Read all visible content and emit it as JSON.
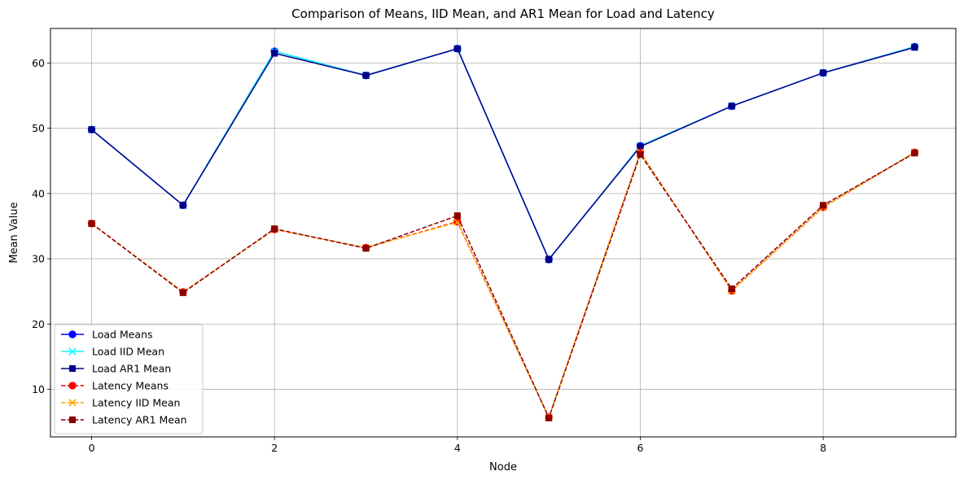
{
  "chart_data": {
    "type": "line",
    "title": "Comparison of Means, IID Mean, and AR1 Mean for Load and Latency",
    "xlabel": "Node",
    "ylabel": "Mean Value",
    "x": [
      0,
      1,
      2,
      3,
      4,
      5,
      6,
      7,
      8,
      9
    ],
    "xlim": [
      -0.45,
      9.45
    ],
    "ylim": [
      2.7,
      65.3
    ],
    "xticks": [
      0,
      2,
      4,
      6,
      8
    ],
    "yticks": [
      10,
      20,
      30,
      40,
      50,
      60
    ],
    "grid": true,
    "legend_position": "lower-left",
    "series": [
      {
        "name": "Load Means",
        "color": "#0000ff",
        "linestyle": "solid",
        "marker": "circle",
        "values": [
          49.8,
          38.2,
          61.8,
          58.1,
          62.2,
          29.9,
          47.3,
          53.4,
          58.5,
          62.5
        ]
      },
      {
        "name": "Load IID Mean",
        "color": "#00ffff",
        "linestyle": "solid",
        "marker": "x",
        "values": [
          49.8,
          38.2,
          61.8,
          58.1,
          62.2,
          29.9,
          47.3,
          53.4,
          58.5,
          62.5
        ]
      },
      {
        "name": "Load AR1 Mean",
        "color": "#00008b",
        "linestyle": "solid",
        "marker": "square",
        "values": [
          49.8,
          38.2,
          61.5,
          58.1,
          62.2,
          29.9,
          47.2,
          53.4,
          58.5,
          62.4
        ]
      },
      {
        "name": "Latency Means",
        "color": "#ff0000",
        "linestyle": "dashed",
        "marker": "circle",
        "values": [
          35.4,
          24.9,
          34.5,
          31.7,
          35.7,
          5.7,
          46.3,
          25.1,
          37.9,
          46.3
        ]
      },
      {
        "name": "Latency IID Mean",
        "color": "#ffa500",
        "linestyle": "dashed",
        "marker": "x",
        "values": [
          35.4,
          24.9,
          34.5,
          31.7,
          35.6,
          5.7,
          46.3,
          25.1,
          37.9,
          46.3
        ]
      },
      {
        "name": "Latency AR1 Mean",
        "color": "#8b0000",
        "linestyle": "dashed",
        "marker": "square",
        "values": [
          35.4,
          24.8,
          34.6,
          31.6,
          36.6,
          5.6,
          46.0,
          25.4,
          38.2,
          46.2
        ]
      }
    ]
  }
}
